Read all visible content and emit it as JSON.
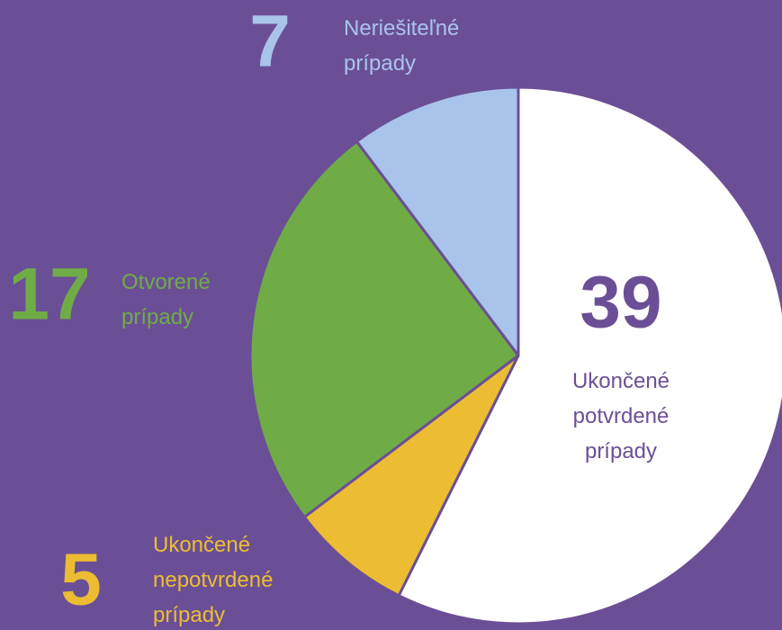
{
  "chart_data": {
    "type": "pie",
    "categories": [
      "Ukončené potvrdené prípady",
      "Ukončené nepotvrdené prípady",
      "Otvorené prípady",
      "Neriešiteľné prípady"
    ],
    "values": [
      39,
      5,
      17,
      7
    ],
    "colors": [
      "#ffffff",
      "#ecbd32",
      "#6fac46",
      "#a9c4ea"
    ],
    "label_colors": [
      "#6b4f96",
      "#ecbd32",
      "#6fac46",
      "#a9c4ea"
    ]
  }
}
